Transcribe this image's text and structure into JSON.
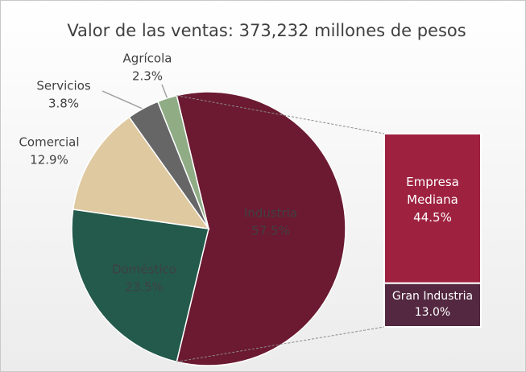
{
  "chart_data": {
    "type": "pie",
    "title": "Valor de las ventas: 373,232  millones de pesos",
    "categories": [
      "Industria",
      "Doméstico",
      "Comercial",
      "Servicios",
      "Agrícola"
    ],
    "values": [
      57.5,
      23.5,
      12.9,
      3.8,
      2.3
    ],
    "value_labels": [
      "57.5%",
      "23.5%",
      "12.9%",
      "3.8%",
      "2.3%"
    ],
    "colors": [
      "#6b1a31",
      "#235a4b",
      "#dfc9a0",
      "#666666",
      "#8fac85"
    ],
    "breakdown": {
      "categories": [
        "Empresa Mediana",
        "Gran Industria"
      ],
      "values": [
        44.5,
        13.0
      ],
      "value_labels": [
        "44.5%",
        "13.0%"
      ],
      "colors": [
        "#9e2240",
        "#532840"
      ]
    }
  }
}
